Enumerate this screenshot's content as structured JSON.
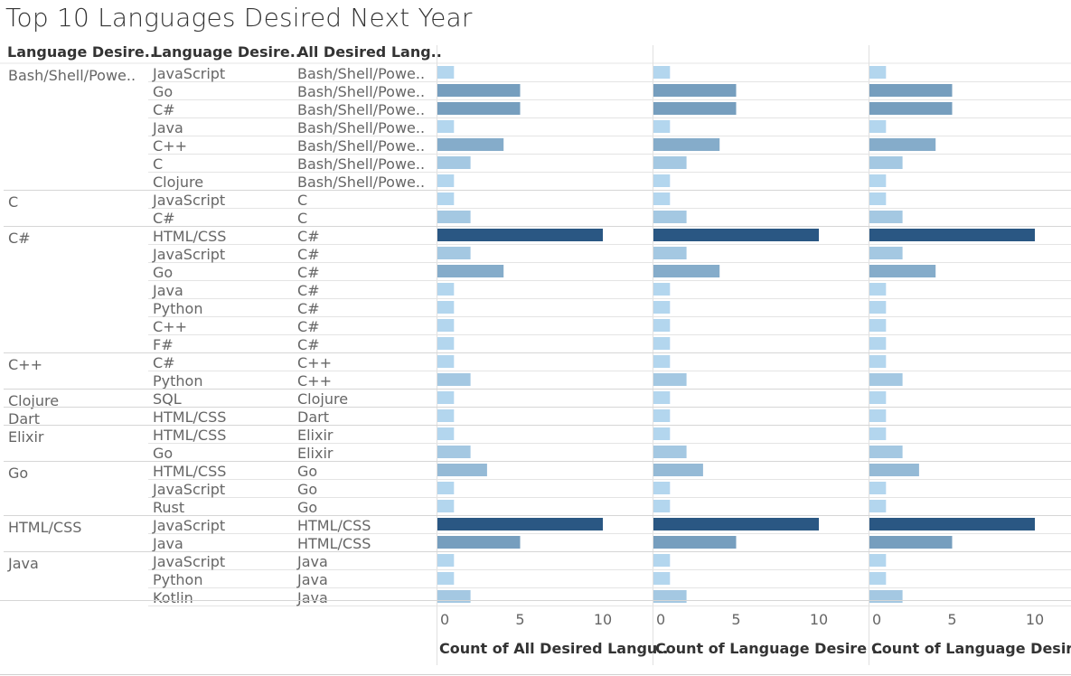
{
  "chart_data": {
    "type": "bar",
    "title": "Top 10 Languages Desired Next Year",
    "row_headers": [
      "Language Desire..",
      "Language Desire..",
      "All Desired Lang.."
    ],
    "rows": [
      {
        "group": "Bash/Shell/Powe..",
        "lang": "JavaScript",
        "all": "Bash/Shell/Powe..",
        "value": 1
      },
      {
        "group": "",
        "lang": "Go",
        "all": "Bash/Shell/Powe..",
        "value": 5
      },
      {
        "group": "",
        "lang": "C#",
        "all": "Bash/Shell/Powe..",
        "value": 5
      },
      {
        "group": "",
        "lang": "Java",
        "all": "Bash/Shell/Powe..",
        "value": 1
      },
      {
        "group": "",
        "lang": "C++",
        "all": "Bash/Shell/Powe..",
        "value": 4
      },
      {
        "group": "",
        "lang": "C",
        "all": "Bash/Shell/Powe..",
        "value": 2
      },
      {
        "group": "",
        "lang": "Clojure",
        "all": "Bash/Shell/Powe..",
        "value": 1
      },
      {
        "group": "C",
        "lang": "JavaScript",
        "all": "C",
        "value": 1
      },
      {
        "group": "",
        "lang": "C#",
        "all": "C",
        "value": 2
      },
      {
        "group": "C#",
        "lang": "HTML/CSS",
        "all": "C#",
        "value": 10
      },
      {
        "group": "",
        "lang": "JavaScript",
        "all": "C#",
        "value": 2
      },
      {
        "group": "",
        "lang": "Go",
        "all": "C#",
        "value": 4
      },
      {
        "group": "",
        "lang": "Java",
        "all": "C#",
        "value": 1
      },
      {
        "group": "",
        "lang": "Python",
        "all": "C#",
        "value": 1
      },
      {
        "group": "",
        "lang": "C++",
        "all": "C#",
        "value": 1
      },
      {
        "group": "",
        "lang": "F#",
        "all": "C#",
        "value": 1
      },
      {
        "group": "C++",
        "lang": "C#",
        "all": "C++",
        "value": 1
      },
      {
        "group": "",
        "lang": "Python",
        "all": "C++",
        "value": 2
      },
      {
        "group": "Clojure",
        "lang": "SQL",
        "all": "Clojure",
        "value": 1
      },
      {
        "group": "Dart",
        "lang": "HTML/CSS",
        "all": "Dart",
        "value": 1
      },
      {
        "group": "Elixir",
        "lang": "HTML/CSS",
        "all": "Elixir",
        "value": 1
      },
      {
        "group": "",
        "lang": "Go",
        "all": "Elixir",
        "value": 2
      },
      {
        "group": "Go",
        "lang": "HTML/CSS",
        "all": "Go",
        "value": 3
      },
      {
        "group": "",
        "lang": "JavaScript",
        "all": "Go",
        "value": 1
      },
      {
        "group": "",
        "lang": "Rust",
        "all": "Go",
        "value": 1
      },
      {
        "group": "HTML/CSS",
        "lang": "JavaScript",
        "all": "HTML/CSS",
        "value": 10
      },
      {
        "group": "",
        "lang": "Java",
        "all": "HTML/CSS",
        "value": 5
      },
      {
        "group": "Java",
        "lang": "JavaScript",
        "all": "Java",
        "value": 1
      },
      {
        "group": "",
        "lang": "Python",
        "all": "Java",
        "value": 1
      },
      {
        "group": "",
        "lang": "Kotlin",
        "all": "Java",
        "value": 2
      }
    ],
    "series": [
      {
        "axis_label": "Count of All Desired Langu.."
      },
      {
        "axis_label": "Count of Language Desire .."
      },
      {
        "axis_label": "Count of Language Desire"
      }
    ],
    "x_ticks": [
      0,
      5,
      10
    ],
    "xlim": [
      0,
      10.5
    ],
    "color_scale": {
      "low": "#b3d6ee",
      "high": "#2a5783"
    },
    "grid": true
  }
}
